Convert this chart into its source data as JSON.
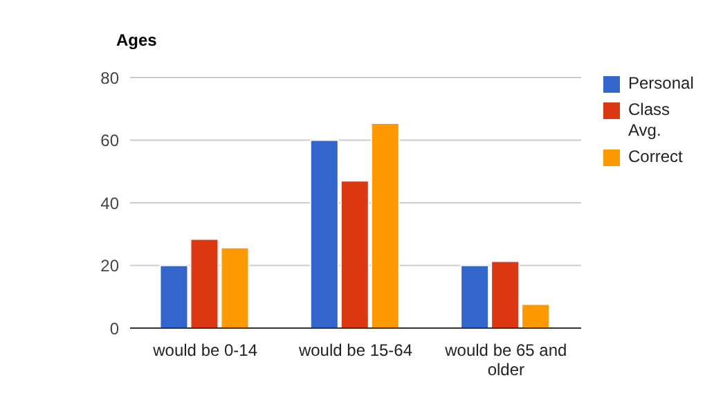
{
  "chart_data": {
    "type": "bar",
    "title": "Ages",
    "categories": [
      "would be 0-14",
      "would be 15-64",
      "would be 65 and older"
    ],
    "series": [
      {
        "name": "Personal",
        "color": "#3366cc",
        "values": [
          20,
          60,
          20
        ]
      },
      {
        "name": "Class Avg.",
        "color": "#dc3912",
        "values": [
          28.4,
          47,
          21.3
        ]
      },
      {
        "name": "Correct",
        "color": "#ff9900",
        "values": [
          25.7,
          65.4,
          7.6
        ]
      }
    ],
    "ylim": [
      0,
      80
    ],
    "yticks": [
      0,
      20,
      40,
      60,
      80
    ],
    "grid": "y",
    "legend": "right"
  }
}
